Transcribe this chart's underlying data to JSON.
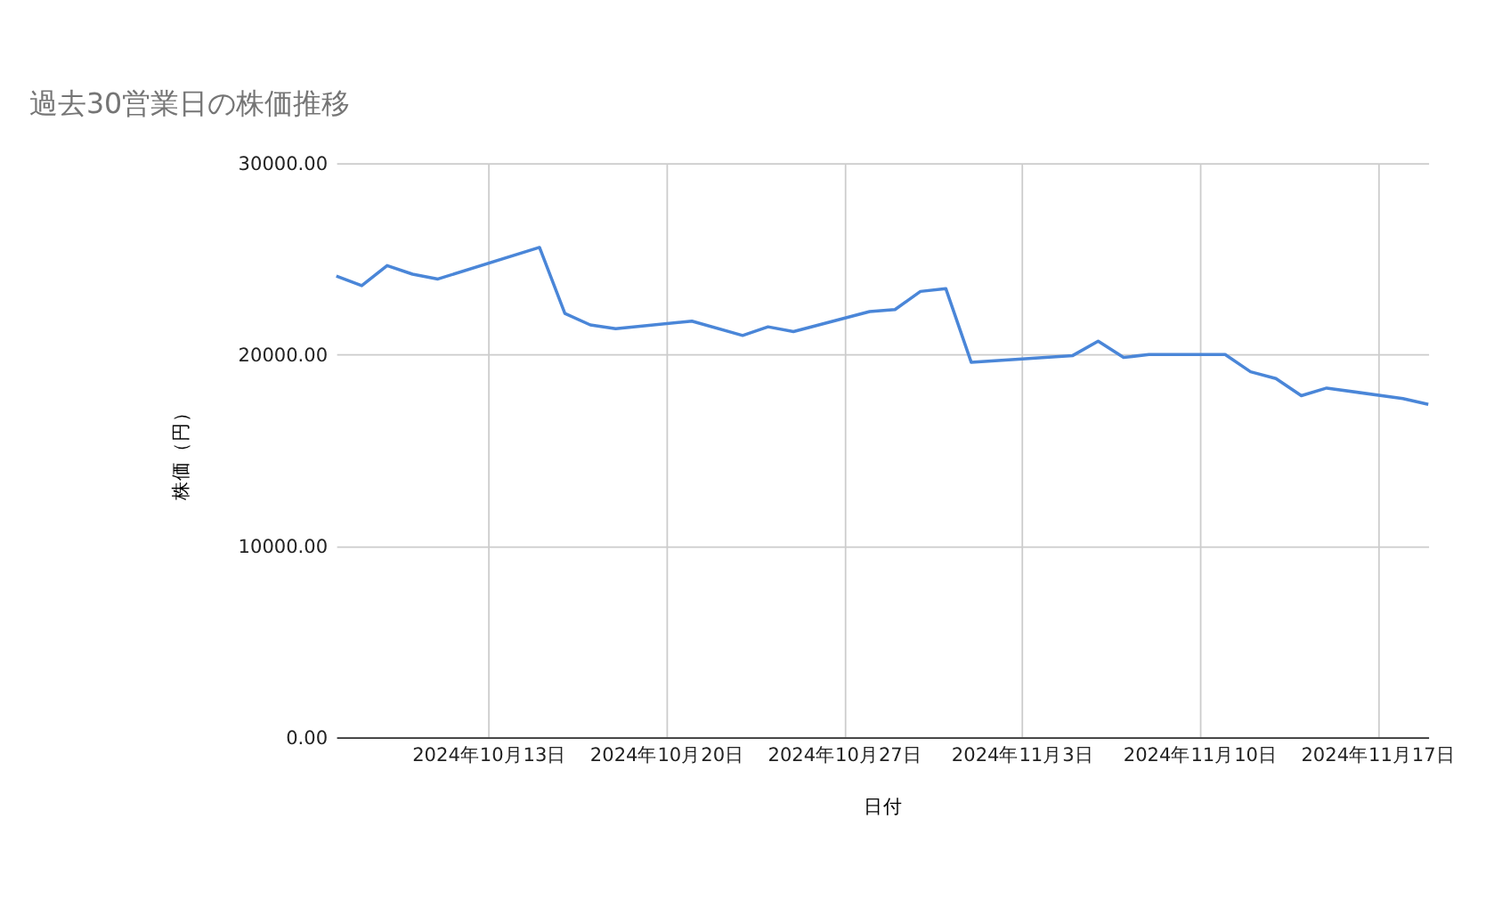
{
  "chart_data": {
    "type": "line",
    "title": "過去30営業日の株価推移",
    "xlabel": "日付",
    "ylabel": "株価（円）",
    "x": [
      "2024-10-07",
      "2024-10-08",
      "2024-10-09",
      "2024-10-10",
      "2024-10-11",
      "2024-10-15",
      "2024-10-16",
      "2024-10-17",
      "2024-10-18",
      "2024-10-21",
      "2024-10-23",
      "2024-10-24",
      "2024-10-25",
      "2024-10-28",
      "2024-10-29",
      "2024-10-30",
      "2024-10-31",
      "2024-11-01",
      "2024-11-05",
      "2024-11-06",
      "2024-11-07",
      "2024-11-08",
      "2024-11-11",
      "2024-11-12",
      "2024-11-13",
      "2024-11-14",
      "2024-11-15",
      "2024-11-18",
      "2024-11-19"
    ],
    "series": [
      {
        "color": "#4a86d8",
        "values": [
          24100,
          23600,
          24650,
          24200,
          23950,
          25600,
          22150,
          21550,
          21350,
          21750,
          21000,
          21450,
          21200,
          22250,
          22350,
          23300,
          23450,
          19600,
          19950,
          20700,
          19850,
          20000,
          20000,
          19100,
          18750,
          17850,
          18250,
          17700,
          17400
        ]
      }
    ],
    "xlim": [
      "2024-10-07",
      "2024-11-19"
    ],
    "xticks": [
      {
        "value": "2024-10-13",
        "label": "2024年10月13日"
      },
      {
        "value": "2024-10-20",
        "label": "2024年10月20日"
      },
      {
        "value": "2024-10-27",
        "label": "2024年10月27日"
      },
      {
        "value": "2024-11-03",
        "label": "2024年11月3日"
      },
      {
        "value": "2024-11-10",
        "label": "2024年11月10日"
      },
      {
        "value": "2024-11-17",
        "label": "2024年11月17日"
      }
    ],
    "ylim": [
      0,
      30000
    ],
    "yticks": [
      {
        "value": 0,
        "label": "0.00"
      },
      {
        "value": 10000,
        "label": "10000.00"
      },
      {
        "value": 20000,
        "label": "20000.00"
      },
      {
        "value": 30000,
        "label": "30000.00"
      }
    ],
    "grid": true,
    "legend": false,
    "marker": "none",
    "line_style": "solid"
  }
}
